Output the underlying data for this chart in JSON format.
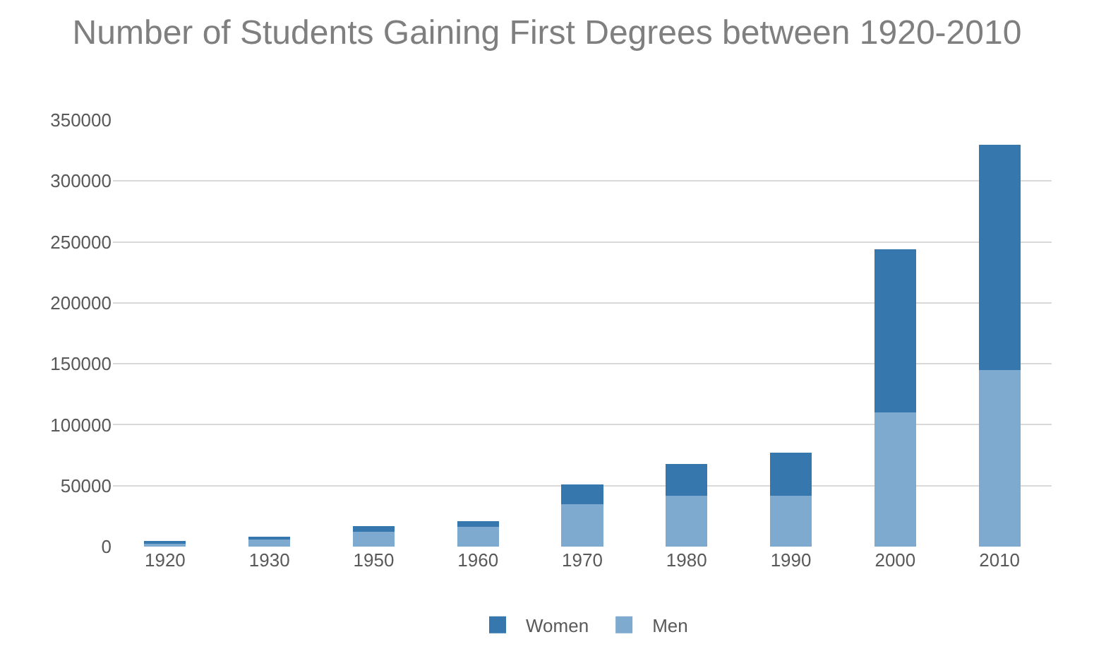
{
  "chart_data": {
    "type": "bar",
    "title": "Number of Students Gaining First Degrees between 1920-2010",
    "categories": [
      "1920",
      "1930",
      "1950",
      "1960",
      "1970",
      "1980",
      "1990",
      "2000",
      "2010"
    ],
    "stacked": true,
    "series": [
      {
        "name": "Men",
        "color": "#7eaad0",
        "values": [
          3000,
          6000,
          12000,
          16000,
          35000,
          42000,
          42000,
          110000,
          145000
        ]
      },
      {
        "name": "Women",
        "color": "#3677ad",
        "values": [
          1000,
          2000,
          5000,
          5000,
          16000,
          26000,
          35000,
          134000,
          185000
        ]
      }
    ],
    "ylim": [
      0,
      350000
    ],
    "yticks": [
      0,
      50000,
      100000,
      150000,
      200000,
      250000,
      300000,
      350000
    ],
    "grid": "y",
    "legend": "bottom"
  }
}
